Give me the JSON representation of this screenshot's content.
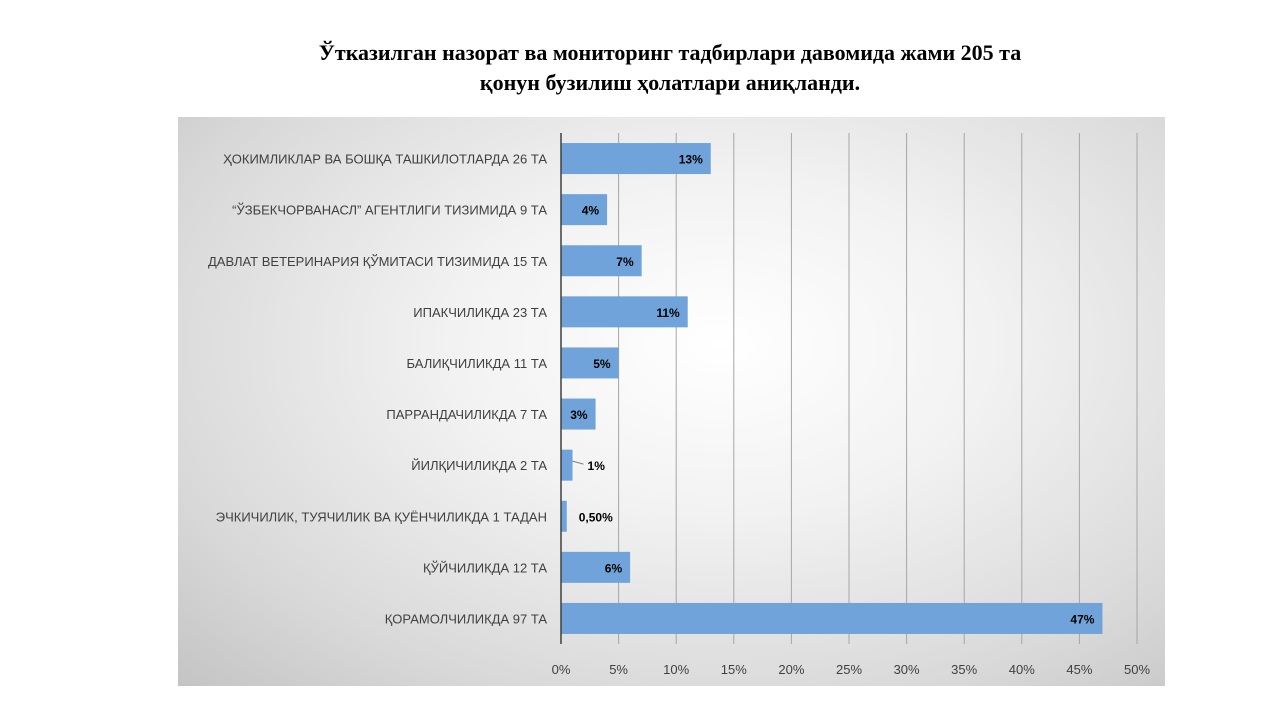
{
  "title": {
    "line1": "Ўтказилган назорат ва мониторинг тадбирлари давомида жами 205 та",
    "line2": "қонун бузилиш ҳолатлари аниқланди."
  },
  "chart_data": {
    "type": "bar",
    "orientation": "horizontal",
    "categories": [
      "ҲОКИМЛИКЛАР ВА БОШҚА ТАШКИЛОТЛАРДА 26 ТА",
      "“ЎЗБЕКЧОРВАНАСЛ” АГЕНТЛИГИ ТИЗИМИДА 9 ТА",
      "ДАВЛАТ ВЕТЕРИНАРИЯ ҚЎМИТАСИ ТИЗИМИДА 15 ТА",
      "ИПАКЧИЛИКДА 23 ТА",
      "БАЛИҚЧИЛИКДА 11 ТА",
      "ПАРРАНДАЧИЛИКДА 7 ТА",
      "ЙИЛҚИЧИЛИКДА 2 ТА",
      "ЭЧКИЧИЛИК, ТУЯЧИЛИК ВА ҚУЁНЧИЛИКДА 1 ТАДАН",
      "ҚЎЙЧИЛИКДА 12 ТА",
      "ҚОРАМОЛЧИЛИКДА 97 ТА"
    ],
    "values": [
      13,
      4,
      7,
      11,
      5,
      3,
      1,
      0.5,
      6,
      47
    ],
    "data_labels": [
      "13%",
      "4%",
      "7%",
      "11%",
      "5%",
      "3%",
      "1%",
      "0,50%",
      "6%",
      "47%"
    ],
    "xlim": [
      0,
      50
    ],
    "x_ticks": [
      "0%",
      "5%",
      "10%",
      "15%",
      "20%",
      "25%",
      "30%",
      "35%",
      "40%",
      "45%",
      "50%"
    ],
    "grid": true,
    "bar_color": "#6fa3d9",
    "legend": "none"
  }
}
